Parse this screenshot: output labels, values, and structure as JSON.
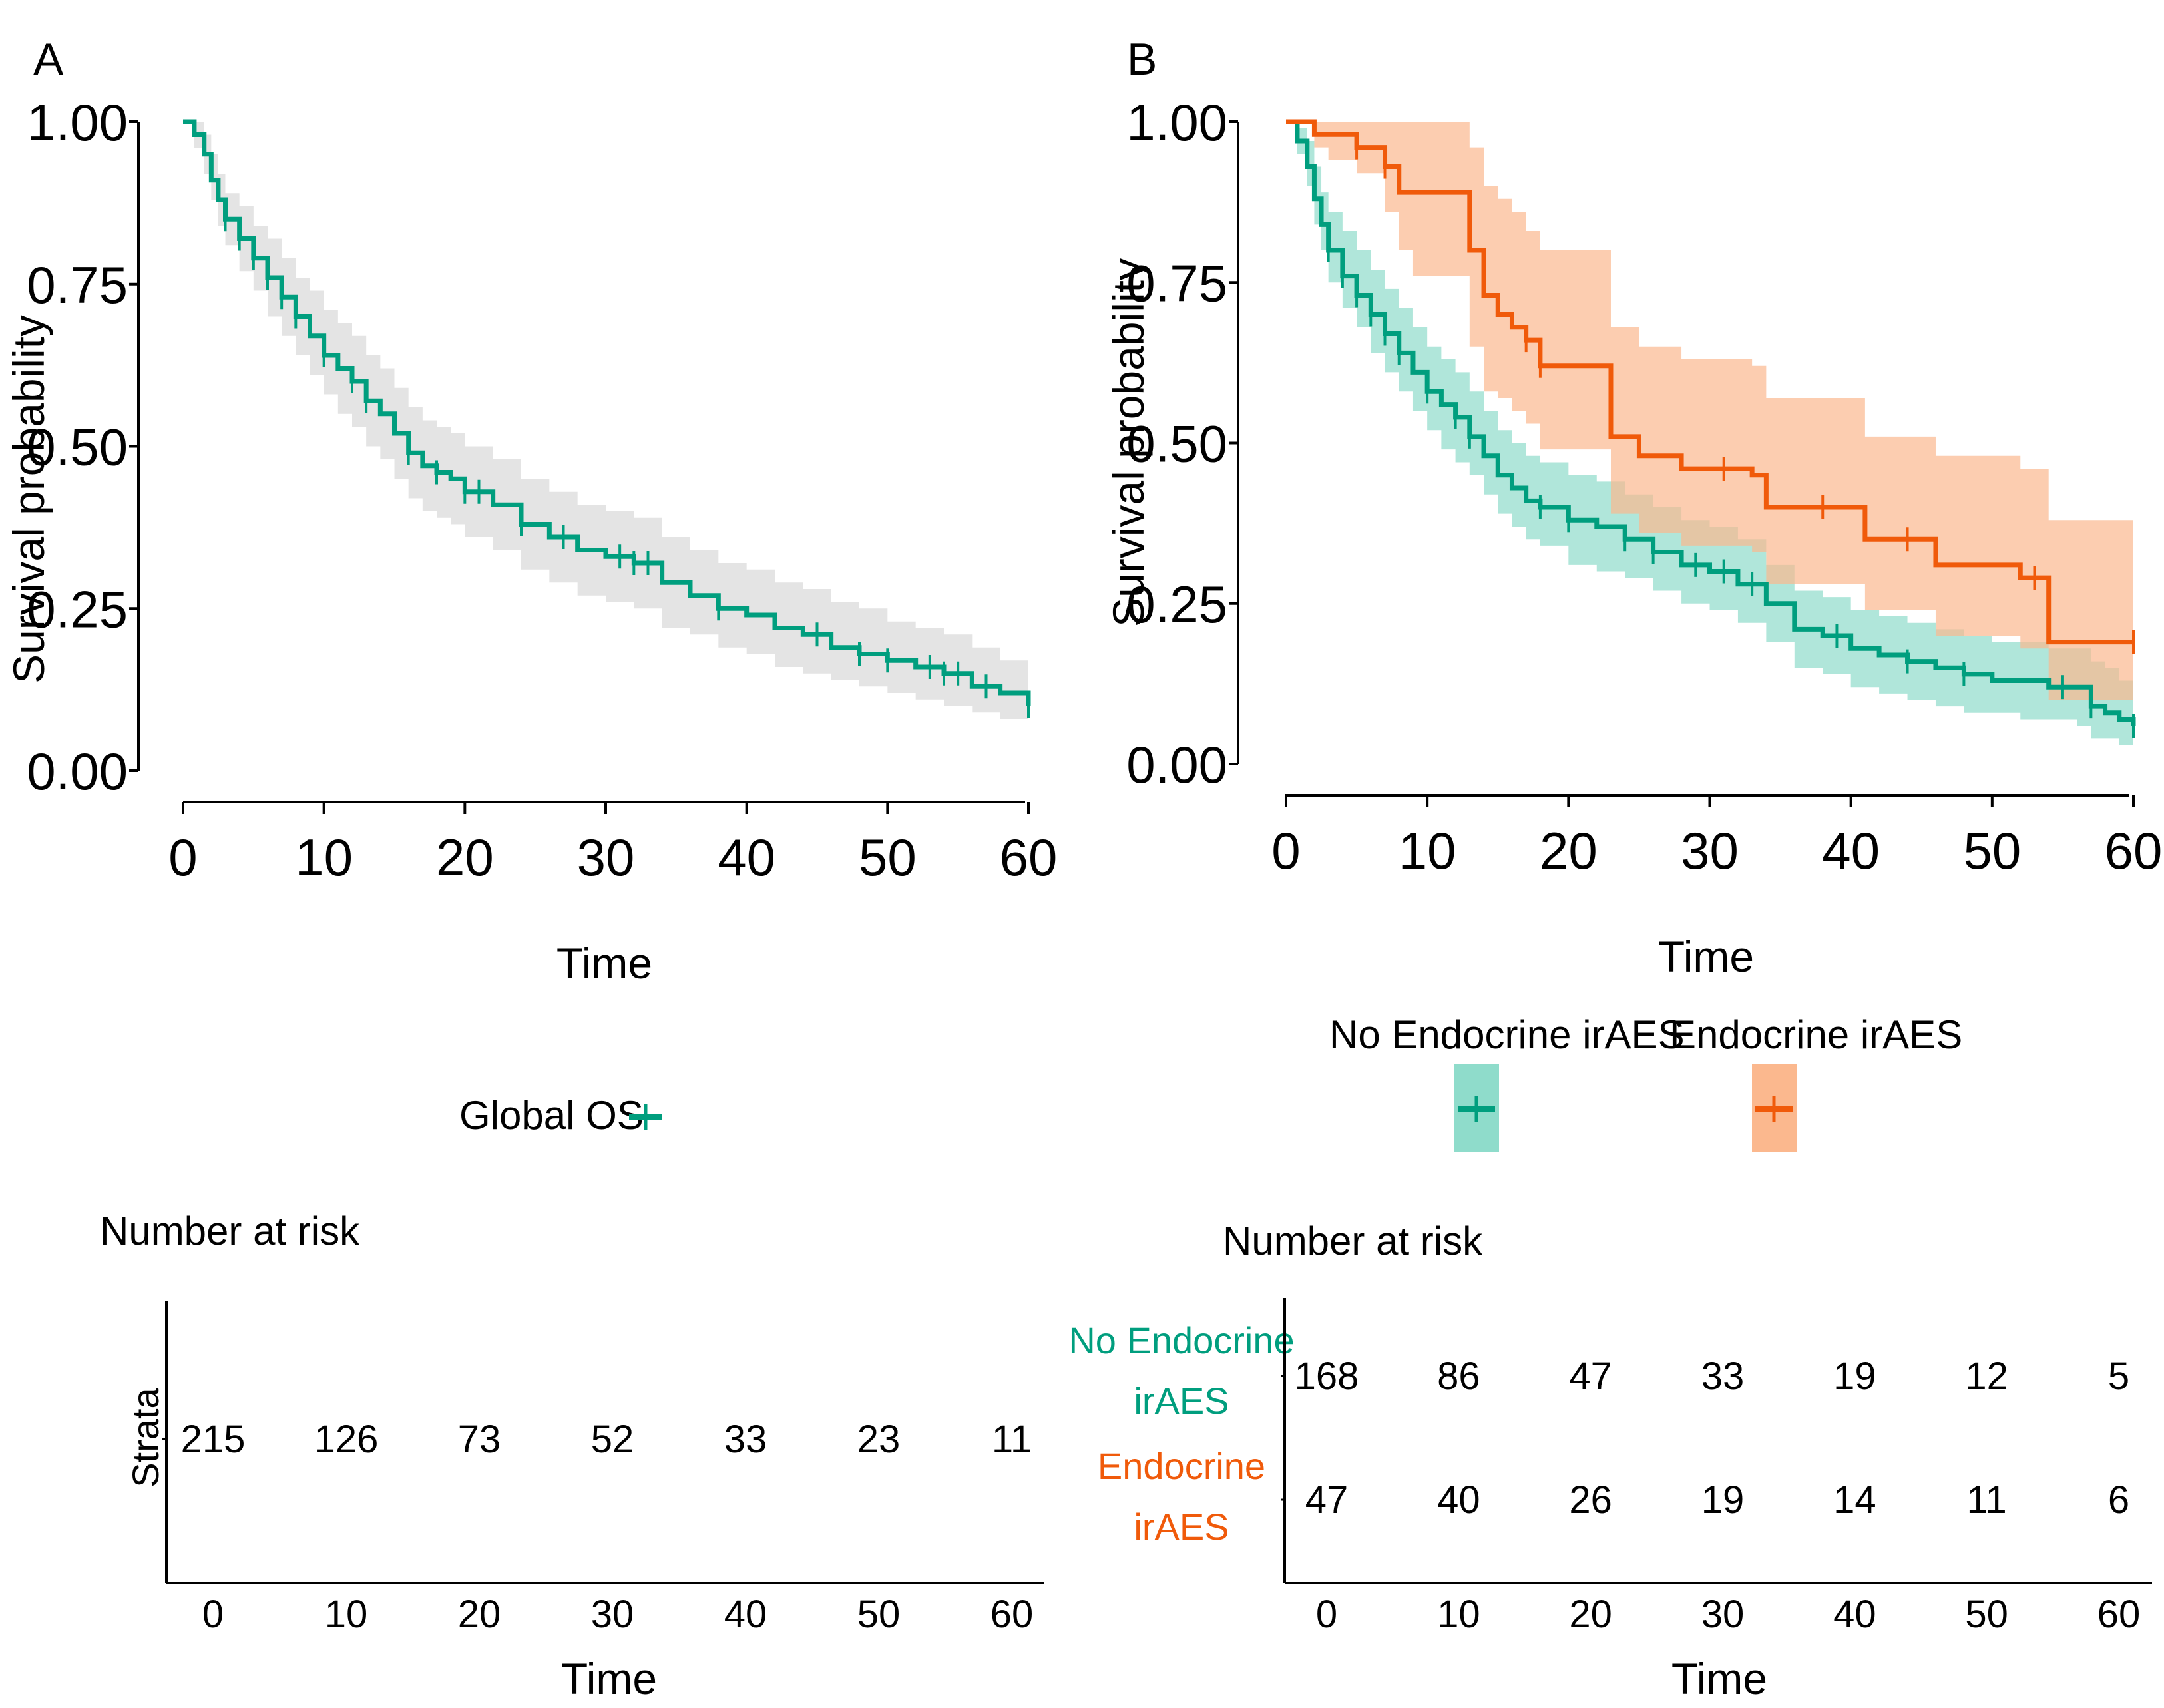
{
  "panels": {
    "A": {
      "letter": "A"
    },
    "B": {
      "letter": "B"
    }
  },
  "colors": {
    "teal": "#009E7E",
    "orange": "#F05A0A",
    "teal_band": "#8FDCCB",
    "orange_band": "#FBB88E",
    "grey_band": "#E4E4E4"
  },
  "chart_data": [
    {
      "type": "line",
      "subtype": "kaplan-meier",
      "panel": "A",
      "xlabel": "Time",
      "ylabel": "Survival probability",
      "xlim": [
        0,
        60
      ],
      "ylim": [
        0,
        1
      ],
      "x_ticks": [
        0,
        10,
        20,
        30,
        40,
        50,
        60
      ],
      "y_ticks": [
        "0.00",
        "0.25",
        "0.50",
        "0.75",
        "1.00"
      ],
      "legend": [
        "Global OS"
      ],
      "series": [
        {
          "name": "Global OS",
          "color": "#009E7E",
          "band_color": "#E4E4E4",
          "times": [
            0,
            0.8,
            1.5,
            2,
            2.5,
            3,
            4,
            5,
            6,
            7,
            8,
            9,
            10,
            11,
            12,
            13,
            14,
            15,
            16,
            17,
            18,
            19,
            20,
            22,
            24,
            26,
            28,
            30,
            32,
            34,
            36,
            38,
            40,
            42,
            44,
            46,
            48,
            50,
            52,
            54,
            56,
            58,
            60
          ],
          "surv": [
            1.0,
            0.98,
            0.95,
            0.91,
            0.88,
            0.85,
            0.82,
            0.79,
            0.76,
            0.73,
            0.7,
            0.67,
            0.64,
            0.62,
            0.6,
            0.57,
            0.55,
            0.52,
            0.49,
            0.47,
            0.46,
            0.45,
            0.43,
            0.41,
            0.38,
            0.36,
            0.34,
            0.33,
            0.32,
            0.29,
            0.27,
            0.25,
            0.24,
            0.22,
            0.21,
            0.19,
            0.18,
            0.17,
            0.16,
            0.15,
            0.13,
            0.12,
            0.1
          ],
          "lower": [
            1.0,
            0.96,
            0.92,
            0.88,
            0.84,
            0.81,
            0.77,
            0.74,
            0.7,
            0.67,
            0.64,
            0.61,
            0.58,
            0.55,
            0.53,
            0.5,
            0.48,
            0.45,
            0.42,
            0.4,
            0.39,
            0.38,
            0.36,
            0.34,
            0.31,
            0.29,
            0.27,
            0.26,
            0.25,
            0.22,
            0.21,
            0.19,
            0.18,
            0.16,
            0.15,
            0.14,
            0.13,
            0.12,
            0.11,
            0.1,
            0.09,
            0.08,
            0.06
          ],
          "upper": [
            1.0,
            1.0,
            0.98,
            0.95,
            0.92,
            0.89,
            0.87,
            0.84,
            0.82,
            0.79,
            0.76,
            0.74,
            0.71,
            0.69,
            0.67,
            0.64,
            0.62,
            0.59,
            0.56,
            0.54,
            0.53,
            0.52,
            0.5,
            0.48,
            0.45,
            0.43,
            0.41,
            0.4,
            0.39,
            0.36,
            0.34,
            0.32,
            0.31,
            0.29,
            0.28,
            0.26,
            0.25,
            0.23,
            0.22,
            0.21,
            0.19,
            0.17,
            0.15
          ],
          "censor_times": [
            3,
            4,
            5,
            6,
            7,
            8,
            10,
            12,
            13,
            16,
            18,
            20,
            21,
            24,
            27,
            31,
            32,
            33,
            38,
            45,
            48,
            50,
            53,
            54,
            55,
            57,
            60
          ]
        }
      ],
      "risk_table": {
        "title": "Number at risk",
        "strata_title": "Strata",
        "x_ticks": [
          0,
          10,
          20,
          30,
          40,
          50,
          60
        ],
        "xlabel": "Time",
        "rows": [
          {
            "name": "Global OS",
            "values": [
              215,
              126,
              73,
              52,
              33,
              23,
              11
            ]
          }
        ]
      }
    },
    {
      "type": "line",
      "subtype": "kaplan-meier",
      "panel": "B",
      "xlabel": "Time",
      "ylabel": "Survival probability",
      "xlim": [
        0,
        60
      ],
      "ylim": [
        0,
        1
      ],
      "x_ticks": [
        0,
        10,
        20,
        30,
        40,
        50,
        60
      ],
      "y_ticks": [
        "0.00",
        "0.25",
        "0.50",
        "0.75",
        "1.00"
      ],
      "legend": [
        "No Endocrine irAES",
        "Endocrine irAES"
      ],
      "series": [
        {
          "name": "No Endocrine irAES",
          "color": "#009E7E",
          "band_color": "#8FDCCB",
          "times": [
            0,
            0.8,
            1.5,
            2,
            2.5,
            3,
            4,
            5,
            6,
            7,
            8,
            9,
            10,
            11,
            12,
            13,
            14,
            15,
            16,
            17,
            18,
            20,
            22,
            24,
            26,
            28,
            30,
            32,
            34,
            36,
            38,
            40,
            42,
            44,
            46,
            48,
            50,
            52,
            54,
            56,
            57,
            58,
            59,
            60
          ],
          "surv": [
            1.0,
            0.97,
            0.93,
            0.88,
            0.84,
            0.8,
            0.76,
            0.73,
            0.7,
            0.67,
            0.64,
            0.61,
            0.58,
            0.56,
            0.54,
            0.51,
            0.48,
            0.45,
            0.43,
            0.41,
            0.4,
            0.38,
            0.37,
            0.35,
            0.33,
            0.31,
            0.3,
            0.28,
            0.25,
            0.21,
            0.2,
            0.18,
            0.17,
            0.16,
            0.15,
            0.14,
            0.13,
            0.13,
            0.12,
            0.12,
            0.09,
            0.08,
            0.07,
            0.06
          ],
          "lower": [
            1.0,
            0.95,
            0.9,
            0.84,
            0.8,
            0.75,
            0.71,
            0.68,
            0.64,
            0.61,
            0.58,
            0.55,
            0.52,
            0.49,
            0.47,
            0.45,
            0.42,
            0.39,
            0.37,
            0.35,
            0.34,
            0.31,
            0.3,
            0.29,
            0.27,
            0.25,
            0.24,
            0.22,
            0.19,
            0.15,
            0.14,
            0.12,
            0.11,
            0.1,
            0.09,
            0.08,
            0.08,
            0.07,
            0.07,
            0.06,
            0.04,
            0.04,
            0.03,
            0.03
          ],
          "upper": [
            1.0,
            0.99,
            0.97,
            0.93,
            0.89,
            0.86,
            0.83,
            0.8,
            0.77,
            0.74,
            0.71,
            0.68,
            0.65,
            0.63,
            0.61,
            0.58,
            0.55,
            0.52,
            0.5,
            0.48,
            0.47,
            0.45,
            0.44,
            0.42,
            0.4,
            0.38,
            0.37,
            0.35,
            0.31,
            0.27,
            0.26,
            0.24,
            0.23,
            0.22,
            0.21,
            0.2,
            0.19,
            0.19,
            0.18,
            0.18,
            0.16,
            0.15,
            0.13,
            0.11
          ],
          "censor_times": [
            3,
            4,
            5,
            6,
            7,
            8,
            10,
            12,
            13,
            18,
            20,
            24,
            26,
            29,
            31,
            33,
            39,
            44,
            48,
            55,
            57,
            60
          ]
        },
        {
          "name": "Endocrine irAES",
          "color": "#F05A0A",
          "band_color": "#FBB88E",
          "times": [
            0,
            1,
            2,
            3,
            5,
            7,
            8,
            9,
            12,
            13,
            14,
            15,
            16,
            17,
            18,
            22,
            23,
            25,
            28,
            33,
            34,
            38,
            41,
            45,
            46,
            52,
            54,
            60
          ],
          "surv": [
            1.0,
            1.0,
            0.98,
            0.98,
            0.96,
            0.93,
            0.89,
            0.89,
            0.89,
            0.8,
            0.73,
            0.7,
            0.68,
            0.66,
            0.62,
            0.62,
            0.51,
            0.48,
            0.46,
            0.45,
            0.4,
            0.4,
            0.35,
            0.35,
            0.31,
            0.29,
            0.19,
            0.19
          ],
          "lower": [
            1.0,
            1.0,
            0.96,
            0.94,
            0.92,
            0.86,
            0.8,
            0.76,
            0.76,
            0.65,
            0.58,
            0.57,
            0.55,
            0.53,
            0.49,
            0.49,
            0.39,
            0.36,
            0.34,
            0.33,
            0.28,
            0.28,
            0.24,
            0.24,
            0.2,
            0.18,
            0.1,
            0.1
          ],
          "upper": [
            1.0,
            1.0,
            1.0,
            1.0,
            1.0,
            1.0,
            1.0,
            1.0,
            1.0,
            0.96,
            0.9,
            0.88,
            0.86,
            0.83,
            0.8,
            0.8,
            0.68,
            0.65,
            0.63,
            0.62,
            0.57,
            0.57,
            0.51,
            0.51,
            0.48,
            0.46,
            0.38,
            0.38
          ],
          "censor_times": [
            5,
            7,
            17,
            18,
            31,
            38,
            44,
            53,
            60
          ]
        }
      ],
      "risk_table": {
        "title": "Number at risk",
        "x_ticks": [
          0,
          10,
          20,
          30,
          40,
          50,
          60
        ],
        "xlabel": "Time",
        "rows": [
          {
            "name": "No Endocrine irAES",
            "label_lines": [
              "No Endocrine",
              "irAES"
            ],
            "color": "#009E7E",
            "values": [
              168,
              86,
              47,
              33,
              19,
              12,
              5
            ]
          },
          {
            "name": "Endocrine irAES",
            "label_lines": [
              "Endocrine",
              "irAES"
            ],
            "color": "#F05A0A",
            "values": [
              47,
              40,
              26,
              19,
              14,
              11,
              6
            ]
          }
        ]
      }
    }
  ]
}
